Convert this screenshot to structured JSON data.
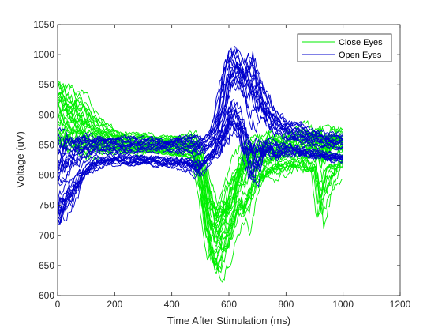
{
  "chart_data": {
    "type": "line",
    "title": "",
    "xlabel": "Time After Stimulation (ms)",
    "ylabel": "Voltage (uV)",
    "xlim": [
      0,
      1200
    ],
    "ylim": [
      600,
      1050
    ],
    "xticks": [
      0,
      200,
      400,
      600,
      800,
      1000,
      1200
    ],
    "yticks": [
      600,
      650,
      700,
      750,
      800,
      850,
      900,
      950,
      1000,
      1050
    ],
    "grid": false,
    "legend_position": "top-right",
    "series": [
      {
        "name": "Close Eyes",
        "color": "#00ee00",
        "trials": 30,
        "x": [
          0,
          50,
          100,
          150,
          200,
          250,
          300,
          350,
          400,
          450,
          480,
          500,
          520,
          540,
          560,
          580,
          600,
          620,
          640,
          660,
          680,
          700,
          750,
          800,
          850,
          900,
          920,
          950,
          1000
        ],
        "mean": [
          900,
          880,
          865,
          857,
          853,
          850,
          848,
          846,
          845,
          842,
          840,
          808,
          745,
          700,
          690,
          705,
          730,
          760,
          790,
          805,
          812,
          818,
          826,
          832,
          838,
          842,
          835,
          840,
          845
        ],
        "low": [
          830,
          830,
          820,
          830,
          830,
          830,
          830,
          830,
          825,
          825,
          820,
          760,
          680,
          640,
          610,
          630,
          650,
          680,
          700,
          660,
          720,
          760,
          780,
          790,
          800,
          780,
          650,
          740,
          800
        ],
        "high": [
          975,
          960,
          940,
          905,
          880,
          875,
          875,
          870,
          868,
          875,
          880,
          860,
          830,
          800,
          770,
          780,
          800,
          830,
          850,
          860,
          865,
          870,
          880,
          880,
          890,
          890,
          880,
          885,
          885
        ]
      },
      {
        "name": "Open Eyes",
        "color": "#0000cc",
        "trials": 30,
        "x": [
          0,
          50,
          100,
          150,
          200,
          250,
          300,
          350,
          400,
          450,
          500,
          520,
          540,
          560,
          580,
          600,
          620,
          640,
          660,
          680,
          700,
          720,
          740,
          760,
          800,
          850,
          900,
          950,
          1000
        ],
        "mean": [
          790,
          815,
          835,
          840,
          840,
          840,
          840,
          840,
          840,
          840,
          838,
          840,
          845,
          860,
          895,
          935,
          950,
          945,
          925,
          910,
          900,
          890,
          880,
          870,
          860,
          855,
          850,
          848,
          845
        ],
        "low": [
          695,
          740,
          790,
          810,
          815,
          815,
          815,
          812,
          810,
          805,
          790,
          810,
          820,
          825,
          840,
          850,
          860,
          840,
          800,
          760,
          780,
          800,
          820,
          820,
          830,
          830,
          825,
          820,
          820
        ],
        "high": [
          880,
          870,
          870,
          870,
          868,
          868,
          865,
          865,
          865,
          870,
          865,
          870,
          880,
          920,
          990,
          1030,
          1020,
          1000,
          1000,
          1010,
          990,
          960,
          940,
          920,
          900,
          890,
          880,
          875,
          870
        ]
      }
    ]
  }
}
